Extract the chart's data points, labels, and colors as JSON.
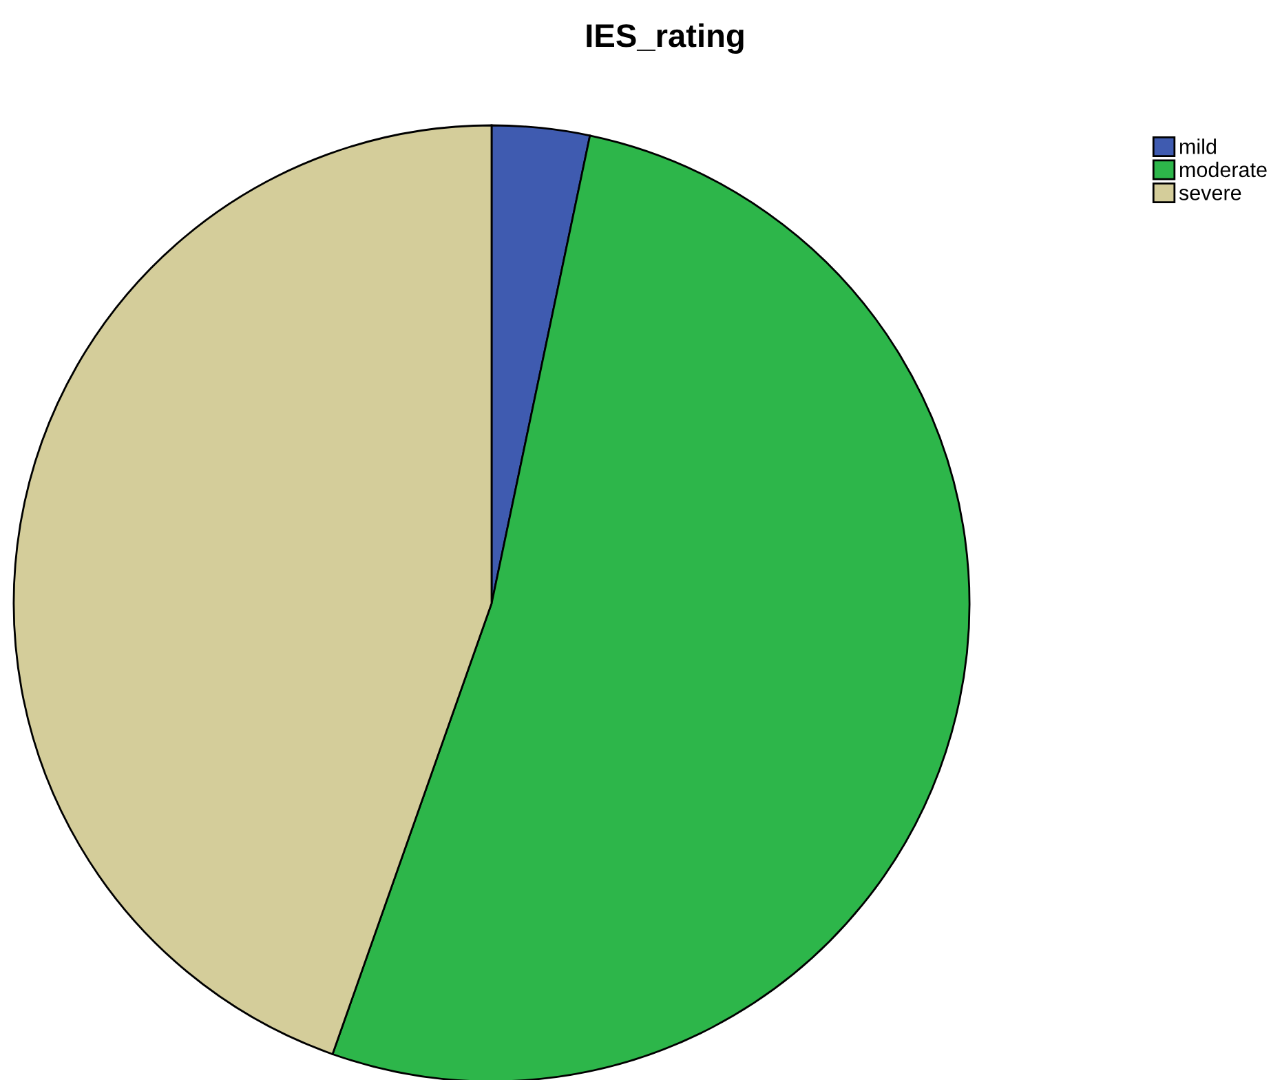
{
  "chart_data": {
    "type": "pie",
    "title": "IES_rating",
    "categories": [
      "mild",
      "moderate",
      "severe"
    ],
    "values": [
      3.3,
      52.1,
      44.6
    ],
    "colors": [
      "#3f5bb0",
      "#2db64a",
      "#d4cd9a"
    ],
    "legend": "top right"
  }
}
